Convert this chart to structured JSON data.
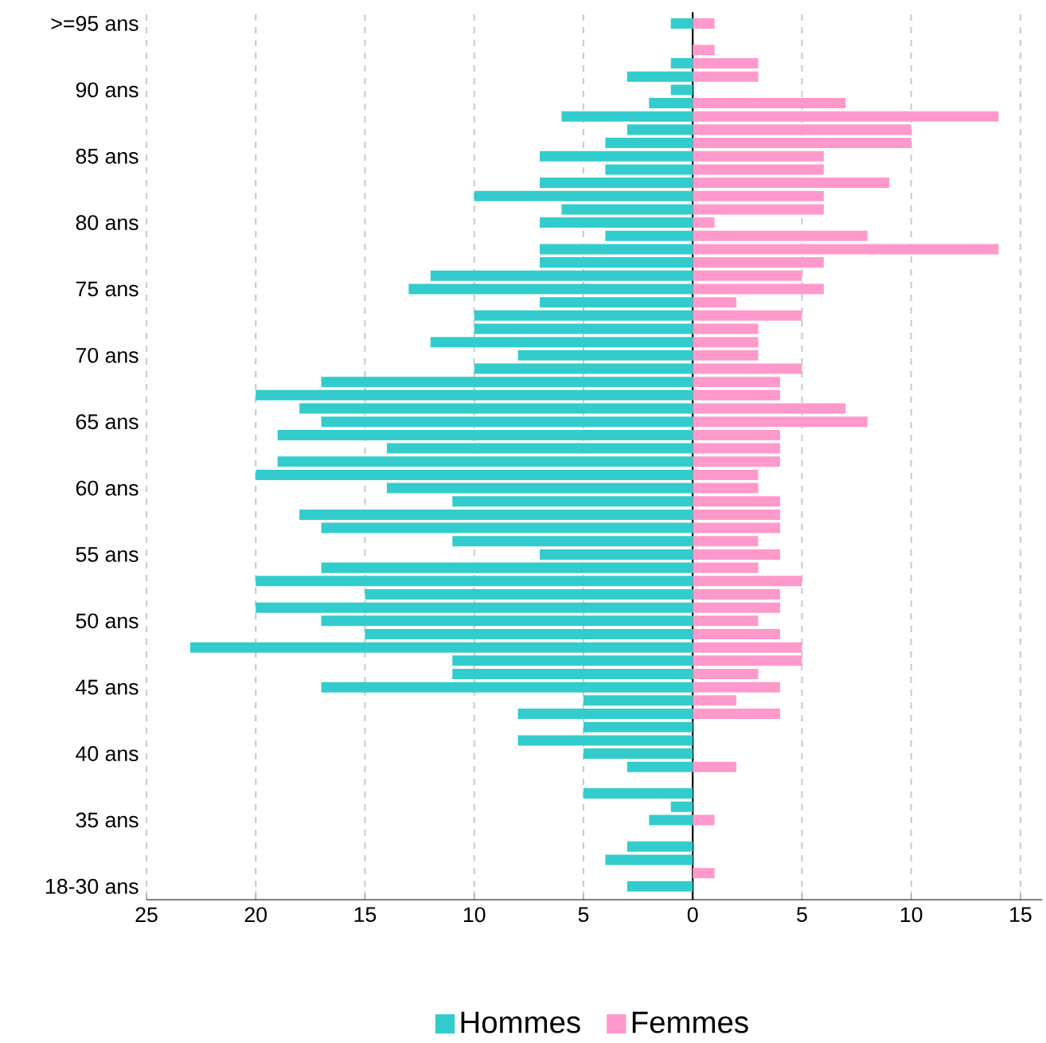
{
  "chart_data": {
    "type": "bar",
    "orientation": "horizontal",
    "categories": [
      ">=95 ans",
      null,
      null,
      null,
      null,
      "90 ans",
      null,
      null,
      null,
      null,
      "85 ans",
      null,
      null,
      null,
      null,
      "80 ans",
      null,
      null,
      null,
      null,
      "75 ans",
      null,
      null,
      null,
      null,
      "70 ans",
      null,
      null,
      null,
      null,
      "65 ans",
      null,
      null,
      null,
      null,
      "60 ans",
      null,
      null,
      null,
      null,
      "55 ans",
      null,
      null,
      null,
      null,
      "50 ans",
      null,
      null,
      null,
      null,
      "45 ans",
      null,
      null,
      null,
      null,
      "40 ans",
      null,
      null,
      null,
      null,
      "35 ans",
      null,
      null,
      null,
      null,
      "18-30 ans"
    ],
    "series": [
      {
        "name": "Hommes",
        "color": "#33cccc",
        "values": [
          -1,
          0,
          0,
          -1,
          -3,
          -1,
          -2,
          -6,
          -3,
          -4,
          -7,
          -4,
          -7,
          -10,
          -6,
          -7,
          -4,
          -7,
          -7,
          -12,
          -13,
          -7,
          -10,
          -10,
          -12,
          -8,
          -10,
          -17,
          -20,
          -18,
          -17,
          -19,
          -14,
          -19,
          -20,
          -14,
          -11,
          -18,
          -17,
          -11,
          -7,
          -17,
          -20,
          -15,
          -20,
          -17,
          -15,
          -23,
          -11,
          -11,
          -17,
          -5,
          -8,
          -5,
          -8,
          -5,
          -3,
          0,
          -5,
          -1,
          -2,
          0,
          -3,
          -4,
          0,
          -3
        ]
      },
      {
        "name": "Femmes",
        "color": "#ff99cc",
        "values": [
          1,
          0,
          1,
          3,
          3,
          0,
          7,
          14,
          10,
          10,
          6,
          6,
          9,
          6,
          6,
          1,
          8,
          14,
          6,
          5,
          6,
          2,
          5,
          3,
          3,
          3,
          5,
          4,
          4,
          7,
          8,
          4,
          4,
          4,
          3,
          3,
          4,
          4,
          4,
          3,
          4,
          3,
          5,
          4,
          4,
          3,
          4,
          5,
          5,
          3,
          4,
          2,
          4,
          0,
          0,
          0,
          2,
          0,
          0,
          0,
          1,
          0,
          0,
          0,
          1,
          0
        ]
      }
    ],
    "xlim": [
      -25,
      16
    ],
    "xticks": [
      {
        "value": -25,
        "label": "25"
      },
      {
        "value": -20,
        "label": "20"
      },
      {
        "value": -15,
        "label": "15"
      },
      {
        "value": -10,
        "label": "10"
      },
      {
        "value": -5,
        "label": "5"
      },
      0,
      5,
      10,
      15
    ],
    "grid": "x",
    "legend": "bottom",
    "stacked": true
  }
}
